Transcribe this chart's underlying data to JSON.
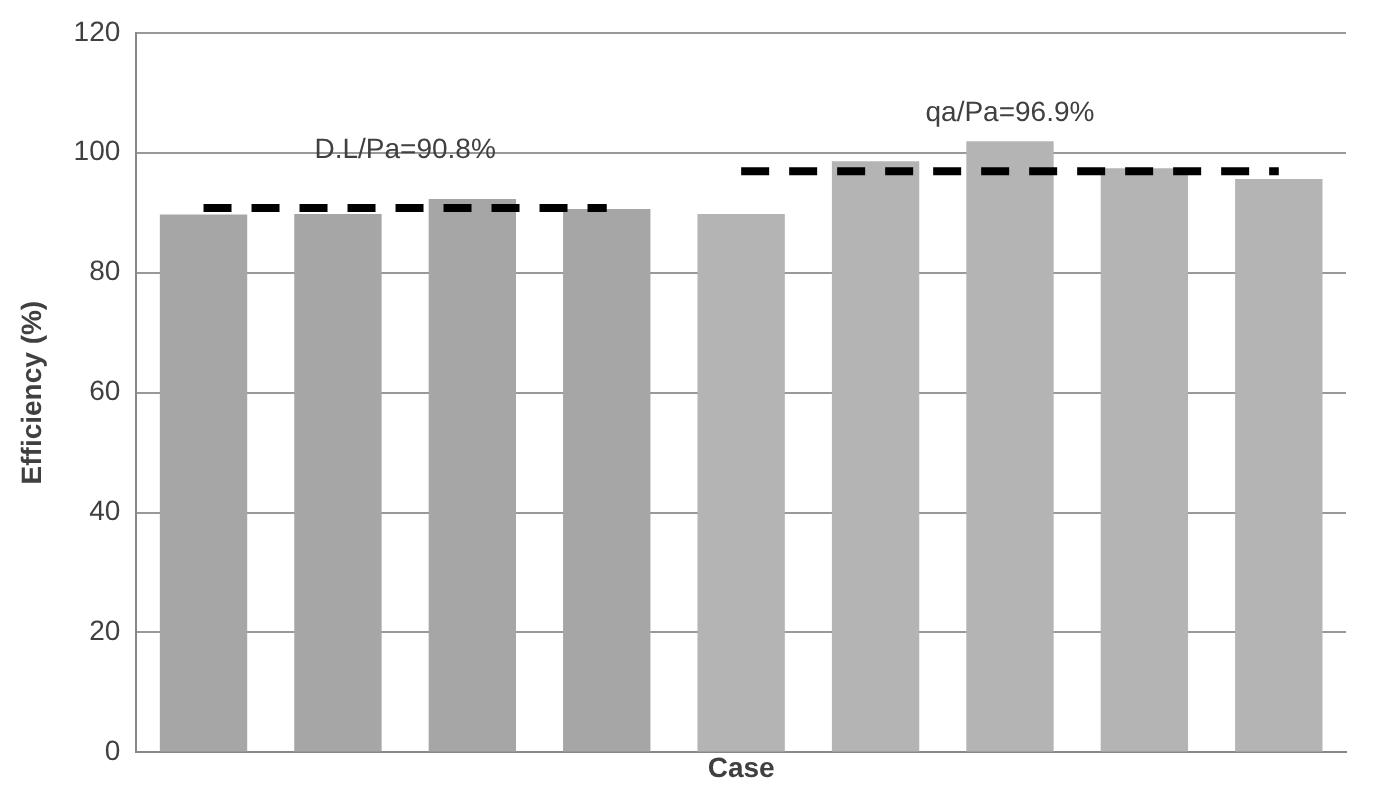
{
  "chart_data": {
    "type": "bar",
    "xlabel": "Case",
    "ylabel": "Efficiency (%)",
    "categories": [
      null,
      null,
      null,
      null,
      null,
      null,
      null,
      null,
      null
    ],
    "ylim": [
      0,
      120
    ],
    "yticks": [
      0,
      20,
      40,
      60,
      80,
      100,
      120
    ],
    "grid": "y",
    "tick_labels": "y",
    "series": [
      {
        "colors": [
          "#a6a6a6",
          "#a6a6a6",
          "#a6a6a6",
          "#a6a6a6",
          "#b4b4b4",
          "#b4b4b4",
          "#b4b4b4",
          "#b4b4b4",
          "#b4b4b4"
        ],
        "values": [
          89.7,
          89.8,
          92.3,
          90.6,
          89.8,
          98.6,
          101.9,
          97.4,
          95.6
        ]
      },
      {
        "type": "line",
        "color": "#000000",
        "line_style": "dashed",
        "values": [
          90.8,
          90.8,
          90.8,
          90.8,
          null,
          null,
          null,
          null,
          null
        ]
      },
      {
        "type": "line",
        "color": "#000000",
        "line_style": "dashed",
        "values": [
          null,
          null,
          null,
          null,
          96.9,
          96.9,
          96.9,
          96.9,
          96.9
        ]
      }
    ],
    "annotations": [
      "D.L/Pa=90.8%",
      "qa/Pa=96.9%"
    ]
  }
}
